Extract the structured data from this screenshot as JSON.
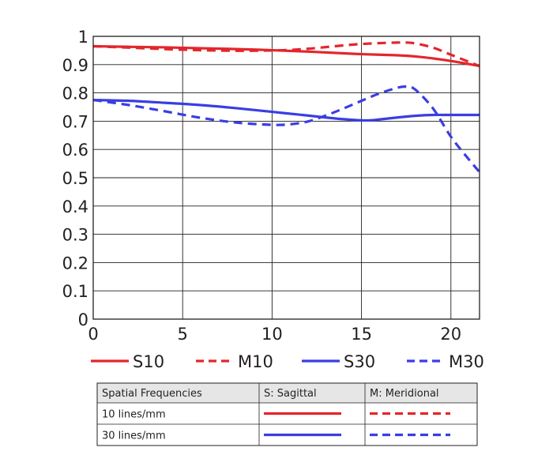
{
  "chart_data": {
    "type": "line",
    "xlim": [
      0,
      21.6
    ],
    "ylim": [
      0,
      1
    ],
    "x_ticks": [
      "0",
      "5",
      "10",
      "15",
      "20"
    ],
    "y_ticks": [
      "0",
      "0.1",
      "0.2",
      "0.3",
      "0.4",
      "0.5",
      "0.6",
      "0.7",
      "0.8",
      "0.9",
      "1"
    ],
    "grid": true,
    "legend_position": "bottom",
    "colors": {
      "red": "#e3262c",
      "blue": "#3a3ee2"
    },
    "series": [
      {
        "name": "S10",
        "color": "#e3262c",
        "dash": false,
        "x": [
          0,
          2,
          4,
          6,
          8,
          10,
          12,
          14,
          15,
          16,
          17,
          18,
          19,
          20,
          21,
          21.6
        ],
        "y": [
          0.965,
          0.963,
          0.961,
          0.958,
          0.955,
          0.951,
          0.946,
          0.94,
          0.937,
          0.935,
          0.933,
          0.929,
          0.922,
          0.913,
          0.902,
          0.895
        ]
      },
      {
        "name": "M10",
        "color": "#e3262c",
        "dash": true,
        "x": [
          0,
          2,
          4,
          6,
          8,
          10,
          11,
          12,
          13,
          14,
          15,
          16,
          17,
          17.5,
          18,
          19,
          20,
          21,
          21.6
        ],
        "y": [
          0.965,
          0.96,
          0.955,
          0.951,
          0.949,
          0.95,
          0.952,
          0.956,
          0.962,
          0.968,
          0.973,
          0.976,
          0.978,
          0.978,
          0.975,
          0.96,
          0.935,
          0.91,
          0.895
        ]
      },
      {
        "name": "S30",
        "color": "#3a3ee2",
        "dash": false,
        "x": [
          0,
          2,
          4,
          6,
          8,
          10,
          12,
          13,
          14,
          15,
          15.5,
          16,
          17,
          18,
          19,
          20,
          21,
          21.6
        ],
        "y": [
          0.775,
          0.772,
          0.765,
          0.757,
          0.746,
          0.733,
          0.72,
          0.713,
          0.707,
          0.703,
          0.703,
          0.706,
          0.713,
          0.719,
          0.722,
          0.722,
          0.722,
          0.722
        ]
      },
      {
        "name": "M30",
        "color": "#3a3ee2",
        "dash": true,
        "x": [
          0,
          2,
          4,
          6,
          8,
          10,
          11,
          12,
          13,
          14,
          15,
          16,
          17,
          17.5,
          18,
          19,
          20,
          21,
          21.6
        ],
        "y": [
          0.775,
          0.757,
          0.735,
          0.712,
          0.695,
          0.687,
          0.689,
          0.699,
          0.72,
          0.745,
          0.772,
          0.798,
          0.818,
          0.822,
          0.812,
          0.745,
          0.645,
          0.565,
          0.52
        ]
      }
    ]
  },
  "table": {
    "headers": [
      "Spatial Frequencies",
      "S: Sagittal",
      "M: Meridional"
    ],
    "rows": [
      {
        "label": "10 lines/mm",
        "color": "#e3262c"
      },
      {
        "label": "30 lines/mm",
        "color": "#3a3ee2"
      }
    ]
  }
}
